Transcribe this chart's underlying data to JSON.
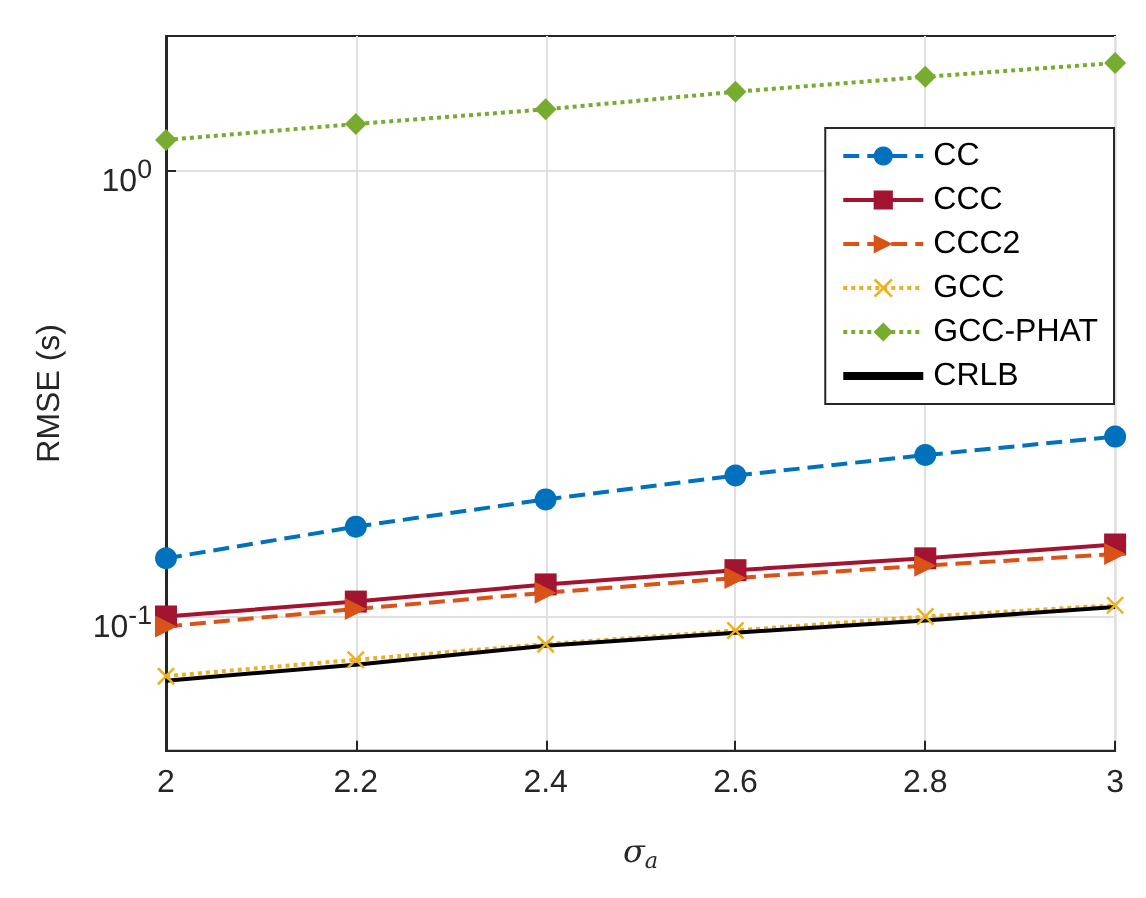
{
  "chart_data": {
    "type": "line",
    "xlabel": "σ$_{a}$",
    "ylabel": "RMSE (s)",
    "x": [
      2,
      2.2,
      2.4,
      2.6,
      2.8,
      3
    ],
    "xlim": [
      2,
      3
    ],
    "xticks": [
      2,
      2.2,
      2.4,
      2.6,
      2.8,
      3
    ],
    "ylim": [
      0.05,
      2
    ],
    "yticks": [
      {
        "value": 0.1,
        "label": "10$^{-1}$"
      },
      {
        "value": 1,
        "label": "10$^{0}$"
      }
    ],
    "log": "y",
    "grid": true,
    "legend": "top right",
    "series": [
      {
        "name": "CC",
        "color": "#0072bd",
        "marker": "circle",
        "line_style": "dashed",
        "values": [
          0.135,
          0.159,
          0.183,
          0.207,
          0.23,
          0.253
        ]
      },
      {
        "name": "CCC",
        "color": "#a2142f",
        "marker": "square",
        "line_style": "solid",
        "values": [
          0.1,
          0.108,
          0.118,
          0.127,
          0.135,
          0.145
        ]
      },
      {
        "name": "CCC2",
        "color": "#d95319",
        "marker": "triangle",
        "line_style": "dashed",
        "values": [
          0.095,
          0.104,
          0.113,
          0.122,
          0.13,
          0.138
        ]
      },
      {
        "name": "GCC",
        "color": "#edb120",
        "marker": "cross",
        "line_style": "dotted",
        "values": [
          0.0735,
          0.08,
          0.0867,
          0.093,
          0.1,
          0.106
        ]
      },
      {
        "name": "GCC-PHAT",
        "color": "#77ac30",
        "marker": "diamond",
        "line_style": "dotted",
        "values": [
          1.17,
          1.27,
          1.37,
          1.5,
          1.62,
          1.74
        ]
      },
      {
        "name": "CRLB",
        "color": "#000000",
        "marker": "none",
        "line_style": "solid",
        "values": [
          0.0718,
          0.078,
          0.086,
          0.092,
          0.098,
          0.105
        ]
      }
    ]
  }
}
